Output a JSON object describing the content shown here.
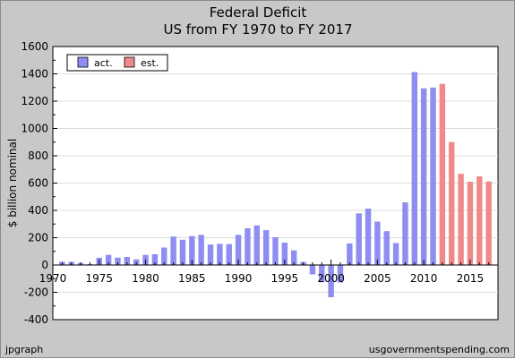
{
  "chart_data": {
    "type": "bar",
    "title": "Federal Deficit",
    "subtitle": "US from FY 1970 to FY 2017",
    "ylabel": "$ billion nominal",
    "xlabel": "",
    "ylim": [
      -400,
      1600
    ],
    "xlim": [
      1970,
      2018
    ],
    "yticks": [
      -400,
      -200,
      0,
      200,
      400,
      600,
      800,
      1000,
      1200,
      1400,
      1600
    ],
    "xticks": [
      1970,
      1975,
      1980,
      1985,
      1990,
      1995,
      2000,
      2005,
      2010,
      2015
    ],
    "grid": true,
    "legend": {
      "position": "top-left",
      "entries": [
        {
          "label": "act.",
          "color": "#8e8ef2"
        },
        {
          "label": "est.",
          "color": "#f08a8a"
        }
      ]
    },
    "series": [
      {
        "name": "act.",
        "color": "#8e8ef2",
        "x": [
          1971,
          1972,
          1973,
          1974,
          1975,
          1976,
          1977,
          1978,
          1979,
          1980,
          1981,
          1982,
          1983,
          1984,
          1985,
          1986,
          1987,
          1988,
          1989,
          1990,
          1991,
          1992,
          1993,
          1994,
          1995,
          1996,
          1997,
          1998,
          1999,
          2000,
          2001,
          2002,
          2003,
          2004,
          2005,
          2006,
          2007,
          2008,
          2009,
          2010,
          2011
        ],
        "values": [
          23,
          23,
          15,
          6,
          53,
          74,
          54,
          59,
          41,
          74,
          79,
          128,
          208,
          185,
          212,
          221,
          150,
          155,
          153,
          221,
          269,
          290,
          255,
          203,
          164,
          107,
          22,
          -69,
          -126,
          -236,
          -128,
          158,
          378,
          413,
          318,
          248,
          161,
          459,
          1413,
          1294,
          1300
        ]
      },
      {
        "name": "est.",
        "color": "#f08a8a",
        "x": [
          2012,
          2013,
          2014,
          2015,
          2016,
          2017
        ],
        "values": [
          1327,
          901,
          668,
          610,
          649,
          612
        ]
      }
    ]
  },
  "footer": {
    "left": "jpgraph",
    "right": "usgovernmentspending.com"
  }
}
